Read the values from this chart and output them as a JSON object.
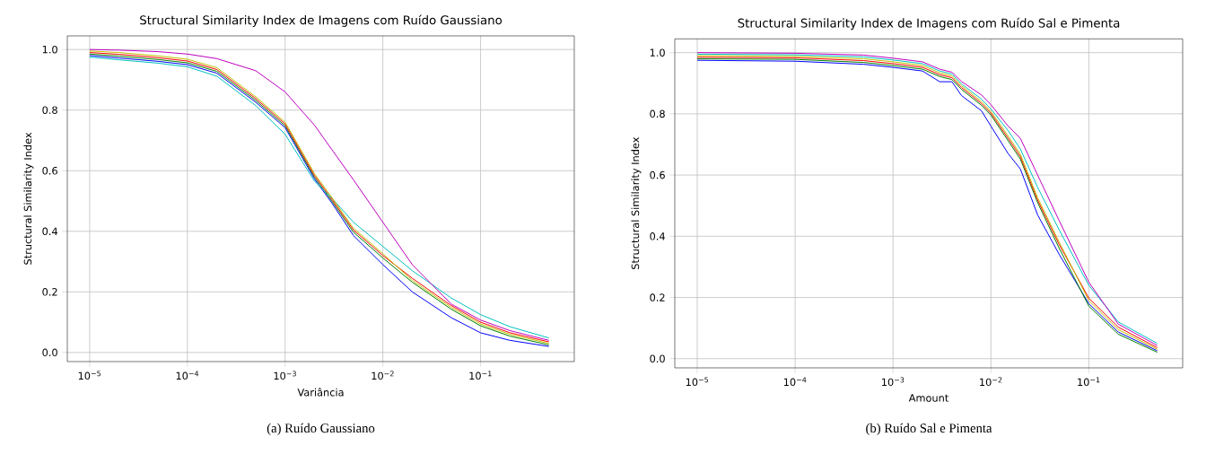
{
  "chart_data": [
    {
      "type": "line",
      "title": "Structural Similarity Index de Imagens com Ruído Gaussiano",
      "xlabel": "Variância",
      "ylabel": "Structural Similarity Index",
      "annotations": [
        "(a) Ruído Gaussiano"
      ],
      "log": "x",
      "grid": true,
      "xlim": [
        5.9e-06,
        0.91
      ],
      "ylim": [
        -0.03,
        1.045
      ],
      "xticks": [
        {
          "value": 1e-05,
          "label": "10$^{−5}$"
        },
        {
          "value": 0.0001,
          "label": "10$^{−4}$"
        },
        {
          "value": 0.001,
          "label": "10$^{−3}$"
        },
        {
          "value": 0.01,
          "label": "10$^{−2}$"
        },
        {
          "value": 0.1,
          "label": "10$^{−1}$"
        }
      ],
      "yticks": [
        {
          "value": 0,
          "label": "0.0"
        },
        {
          "value": 0.2,
          "label": "0.2"
        },
        {
          "value": 0.4,
          "label": "0.4"
        },
        {
          "value": 0.6,
          "label": "0.6"
        },
        {
          "value": 0.8,
          "label": "0.8"
        },
        {
          "value": 1,
          "label": "1.0"
        }
      ],
      "x": [
        1e-05,
        2e-05,
        5e-05,
        0.0001,
        0.0002,
        0.0005,
        0.001,
        0.002,
        0.003,
        0.005,
        0.01,
        0.02,
        0.05,
        0.1,
        0.2,
        0.5
      ],
      "series": [
        {
          "color": "#0000ff",
          "values": [
            0.98,
            0.972,
            0.961,
            0.95,
            0.922,
            0.826,
            0.742,
            0.572,
            0.494,
            0.386,
            0.29,
            0.2,
            0.115,
            0.065,
            0.04,
            0.02
          ]
        },
        {
          "color": "#008000",
          "values": [
            0.985,
            0.978,
            0.967,
            0.956,
            0.928,
            0.832,
            0.748,
            0.578,
            0.5,
            0.397,
            0.312,
            0.232,
            0.143,
            0.088,
            0.054,
            0.025
          ]
        },
        {
          "color": "#ff0000",
          "values": [
            0.99,
            0.984,
            0.973,
            0.962,
            0.934,
            0.838,
            0.754,
            0.584,
            0.506,
            0.404,
            0.32,
            0.245,
            0.155,
            0.1,
            0.065,
            0.035
          ]
        },
        {
          "color": "#00bfbf",
          "values": [
            0.975,
            0.966,
            0.955,
            0.943,
            0.912,
            0.815,
            0.72,
            0.565,
            0.51,
            0.43,
            0.35,
            0.27,
            0.18,
            0.125,
            0.085,
            0.048
          ]
        },
        {
          "color": "#bf00bf",
          "values": [
            1.0,
            0.998,
            0.993,
            0.985,
            0.97,
            0.93,
            0.86,
            0.75,
            0.67,
            0.57,
            0.43,
            0.29,
            0.16,
            0.107,
            0.072,
            0.04
          ]
        },
        {
          "color": "#bfbf00",
          "values": [
            0.995,
            0.99,
            0.979,
            0.968,
            0.94,
            0.844,
            0.76,
            0.59,
            0.512,
            0.41,
            0.326,
            0.238,
            0.149,
            0.094,
            0.06,
            0.03
          ]
        }
      ]
    },
    {
      "type": "line",
      "title": "Structural Similarity Index de Imagens com Ruído Sal e Pimenta",
      "xlabel": "Amount",
      "ylabel": "Structural Similarity Index",
      "annotations": [
        "(b) Ruído Sal e Pimenta"
      ],
      "log": "x",
      "grid": true,
      "xlim": [
        5.9e-06,
        0.91
      ],
      "ylim": [
        -0.03,
        1.045
      ],
      "xticks": [
        {
          "value": 1e-05,
          "label": "10$^{−5}$"
        },
        {
          "value": 0.0001,
          "label": "10$^{−4}$"
        },
        {
          "value": 0.001,
          "label": "10$^{−3}$"
        },
        {
          "value": 0.01,
          "label": "10$^{−2}$"
        },
        {
          "value": 0.1,
          "label": "10$^{−1}$"
        }
      ],
      "yticks": [
        {
          "value": 0,
          "label": "0.0"
        },
        {
          "value": 0.2,
          "label": "0.2"
        },
        {
          "value": 0.4,
          "label": "0.4"
        },
        {
          "value": 0.6,
          "label": "0.6"
        },
        {
          "value": 0.8,
          "label": "0.8"
        },
        {
          "value": 1,
          "label": "1.0"
        }
      ],
      "x": [
        1e-05,
        0.0001,
        0.0005,
        0.001,
        0.002,
        0.003,
        0.004,
        0.005,
        0.008,
        0.01,
        0.015,
        0.02,
        0.03,
        0.05,
        0.1,
        0.2,
        0.5
      ],
      "series": [
        {
          "color": "#0000ff",
          "values": [
            0.975,
            0.972,
            0.962,
            0.952,
            0.94,
            0.905,
            0.905,
            0.86,
            0.81,
            0.76,
            0.67,
            0.62,
            0.47,
            0.34,
            0.18,
            0.087,
            0.026
          ]
        },
        {
          "color": "#008000",
          "values": [
            0.98,
            0.978,
            0.968,
            0.958,
            0.946,
            0.922,
            0.912,
            0.88,
            0.828,
            0.796,
            0.712,
            0.652,
            0.51,
            0.36,
            0.172,
            0.08,
            0.021
          ]
        },
        {
          "color": "#ff0000",
          "values": [
            0.985,
            0.983,
            0.974,
            0.964,
            0.952,
            0.928,
            0.918,
            0.886,
            0.834,
            0.802,
            0.72,
            0.66,
            0.518,
            0.372,
            0.198,
            0.103,
            0.036
          ]
        },
        {
          "color": "#00bfbf",
          "values": [
            0.995,
            0.993,
            0.986,
            0.976,
            0.964,
            0.94,
            0.93,
            0.898,
            0.848,
            0.816,
            0.745,
            0.685,
            0.56,
            0.42,
            0.24,
            0.12,
            0.05
          ]
        },
        {
          "color": "#bf00bf",
          "values": [
            1.0,
            0.998,
            0.992,
            0.982,
            0.97,
            0.946,
            0.936,
            0.906,
            0.862,
            0.83,
            0.76,
            0.72,
            0.6,
            0.45,
            0.25,
            0.113,
            0.043
          ]
        },
        {
          "color": "#bfbf00",
          "values": [
            0.99,
            0.988,
            0.98,
            0.97,
            0.958,
            0.934,
            0.924,
            0.892,
            0.84,
            0.808,
            0.728,
            0.668,
            0.526,
            0.38,
            0.19,
            0.095,
            0.031
          ]
        }
      ]
    }
  ]
}
